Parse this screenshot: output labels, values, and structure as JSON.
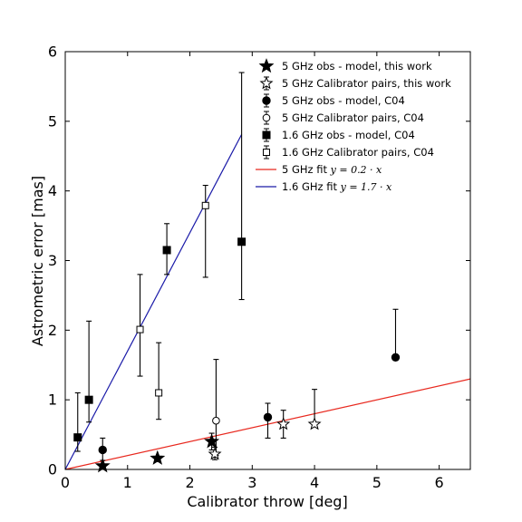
{
  "chart_data": {
    "type": "scatter",
    "xlabel": "Calibrator throw [deg]",
    "ylabel": "Astrometric error [mas]",
    "xlim": [
      0,
      6.5
    ],
    "ylim": [
      0,
      6
    ],
    "xticks": [
      "0",
      "1",
      "2",
      "3",
      "4",
      "5",
      "6"
    ],
    "yticks": [
      "0",
      "1",
      "2",
      "3",
      "4",
      "5",
      "6"
    ],
    "grid": false,
    "legend_position": "top-right",
    "series": [
      {
        "name": "5 GHz obs - model, this work",
        "marker": "filled-star",
        "points": [
          {
            "x": 0.6,
            "y": 0.05
          },
          {
            "x": 1.48,
            "y": 0.16
          },
          {
            "x": 2.35,
            "y": 0.4,
            "err": [
              0.12,
              0.12
            ]
          }
        ]
      },
      {
        "name": "5 GHz Calibrator pairs, this work",
        "marker": "open-star",
        "points": [
          {
            "x": 2.4,
            "y": 0.22,
            "err": [
              0.08,
              0.1
            ]
          },
          {
            "x": 3.5,
            "y": 0.65,
            "err": [
              0.2,
              0.2
            ]
          },
          {
            "x": 4.0,
            "y": 0.65,
            "err": [
              0.0,
              0.5
            ]
          }
        ]
      },
      {
        "name": "5 GHz obs - model, C04",
        "marker": "filled-circle",
        "points": [
          {
            "x": 0.6,
            "y": 0.28,
            "err": [
              0.15,
              0.17
            ]
          },
          {
            "x": 3.25,
            "y": 0.75,
            "err": [
              0.3,
              0.2
            ]
          },
          {
            "x": 5.3,
            "y": 1.61,
            "err": [
              0.0,
              0.69
            ]
          }
        ]
      },
      {
        "name": "5 GHz Calibrator pairs, C04",
        "marker": "open-circle",
        "points": [
          {
            "x": 2.42,
            "y": 0.7,
            "err": [
              0.5,
              0.88
            ]
          }
        ]
      },
      {
        "name": "1.6 GHz obs - model, C04",
        "marker": "filled-square",
        "points": [
          {
            "x": 0.2,
            "y": 0.46,
            "err": [
              0.2,
              0.64
            ]
          },
          {
            "x": 0.38,
            "y": 1.0,
            "err": [
              0.32,
              1.13
            ]
          },
          {
            "x": 1.63,
            "y": 3.15,
            "err": [
              0.35,
              0.38
            ]
          },
          {
            "x": 2.83,
            "y": 3.27,
            "err": [
              0.83,
              2.43
            ]
          }
        ]
      },
      {
        "name": "1.6 GHz Calibrator pairs, C04",
        "marker": "open-square",
        "points": [
          {
            "x": 1.2,
            "y": 2.01,
            "err": [
              0.67,
              0.79
            ]
          },
          {
            "x": 1.5,
            "y": 1.1,
            "err": [
              0.38,
              0.72
            ]
          },
          {
            "x": 2.25,
            "y": 3.79,
            "err": [
              1.03,
              0.29
            ]
          }
        ]
      }
    ],
    "fits": [
      {
        "name": "5 GHz fit",
        "formula": "y = 0.2 · x",
        "slope": 0.2,
        "x_range": [
          0,
          6.5
        ],
        "color": "#e8281e"
      },
      {
        "name": "1.6 GHz fit",
        "formula": "y = 1.7 · x",
        "slope": 1.7,
        "x_range": [
          0,
          2.83
        ],
        "color": "#1a1aa8"
      }
    ]
  }
}
